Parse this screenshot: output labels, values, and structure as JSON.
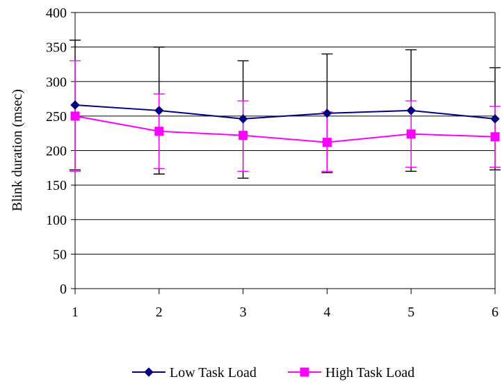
{
  "chart_data": {
    "type": "line",
    "ylabel": "Blink duration (msec)",
    "xlabel": "",
    "categories": [
      "1",
      "2",
      "3",
      "4",
      "5",
      "6"
    ],
    "ylim": [
      0,
      400
    ],
    "yticks": [
      "0",
      "50",
      "100",
      "150",
      "200",
      "250",
      "300",
      "350",
      "400"
    ],
    "grid": "horizontal",
    "legend_position": "bottom",
    "series": [
      {
        "name": "Low Task Load",
        "color": "#000080",
        "marker": "diamond",
        "values": [
          266,
          258,
          246,
          254,
          258,
          246
        ],
        "error_high": [
          360,
          350,
          330,
          340,
          346,
          320
        ],
        "error_low": [
          172,
          166,
          160,
          168,
          170,
          172
        ],
        "error_color": "#000000"
      },
      {
        "name": "High Task Load",
        "color": "#ff00ff",
        "marker": "square",
        "values": [
          250,
          228,
          222,
          212,
          224,
          220
        ],
        "error_high": [
          330,
          282,
          272,
          256,
          272,
          264
        ],
        "error_low": [
          170,
          174,
          170,
          170,
          176,
          176
        ],
        "error_color": "#ff00ff"
      }
    ]
  }
}
